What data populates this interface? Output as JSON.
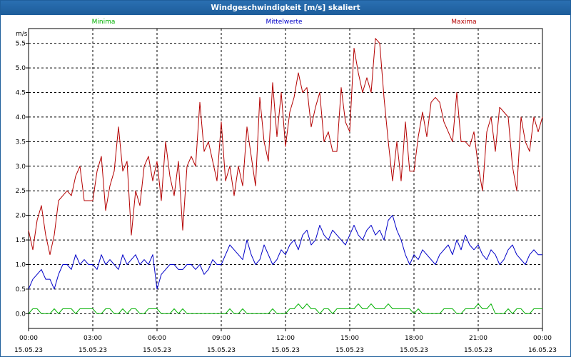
{
  "window": {
    "title": "Windgeschwindigkeit [m/s] skaliert"
  },
  "chart_data": {
    "type": "line",
    "title": "Windgeschwindigkeit [m/s] skaliert",
    "ylabel": "m/s",
    "xlabel": "",
    "ylim": [
      -0.3,
      5.8
    ],
    "xlim": [
      0,
      24
    ],
    "yticks": [
      "0.0",
      "0.5",
      "1.0",
      "1.5",
      "2.0",
      "2.5",
      "3.0",
      "3.5",
      "4.0",
      "4.5",
      "5.0",
      "5.5"
    ],
    "ytick_values": [
      0,
      0.5,
      1,
      1.5,
      2,
      2.5,
      3,
      3.5,
      4,
      4.5,
      5,
      5.5
    ],
    "xticks": [
      {
        "time": "00:00",
        "date": "15.05.23",
        "hour": 0
      },
      {
        "time": "03:00",
        "date": "15.05.23",
        "hour": 3
      },
      {
        "time": "06:00",
        "date": "15.05.23",
        "hour": 6
      },
      {
        "time": "09:00",
        "date": "15.05.23",
        "hour": 9
      },
      {
        "time": "12:00",
        "date": "15.05.23",
        "hour": 12
      },
      {
        "time": "15:00",
        "date": "15.05.23",
        "hour": 15
      },
      {
        "time": "18:00",
        "date": "15.05.23",
        "hour": 18
      },
      {
        "time": "21:00",
        "date": "15.05.23",
        "hour": 21
      },
      {
        "time": "00:00",
        "date": "16.05.23",
        "hour": 24
      }
    ],
    "grid": true,
    "legend_placement": "top",
    "series": [
      {
        "name": "Minima",
        "color": "#00b000",
        "x": [
          0,
          0.2,
          0.4,
          0.6,
          0.8,
          1.0,
          1.2,
          1.4,
          1.6,
          1.8,
          2.0,
          2.2,
          2.4,
          2.6,
          2.8,
          3.0,
          3.2,
          3.4,
          3.6,
          3.8,
          4.0,
          4.2,
          4.4,
          4.6,
          4.8,
          5.0,
          5.2,
          5.4,
          5.6,
          5.8,
          6.0,
          6.2,
          6.4,
          6.6,
          6.8,
          7.0,
          7.2,
          7.4,
          7.6,
          7.8,
          8.0,
          8.2,
          8.4,
          8.6,
          8.8,
          9.0,
          9.2,
          9.4,
          9.6,
          9.8,
          10.0,
          10.2,
          10.4,
          10.6,
          10.8,
          11.0,
          11.2,
          11.4,
          11.6,
          11.8,
          12.0,
          12.2,
          12.4,
          12.6,
          12.8,
          13.0,
          13.2,
          13.4,
          13.6,
          13.8,
          14.0,
          14.2,
          14.4,
          14.6,
          14.8,
          15.0,
          15.2,
          15.4,
          15.6,
          15.8,
          16.0,
          16.2,
          16.4,
          16.6,
          16.8,
          17.0,
          17.2,
          17.4,
          17.6,
          17.8,
          18.0,
          18.2,
          18.4,
          18.6,
          18.8,
          19.0,
          19.2,
          19.4,
          19.6,
          19.8,
          20.0,
          20.2,
          20.4,
          20.6,
          20.8,
          21.0,
          21.2,
          21.4,
          21.6,
          21.8,
          22.0,
          22.2,
          22.4,
          22.6,
          22.8,
          23.0,
          23.2,
          23.4,
          23.6,
          23.8,
          24.0
        ],
        "values": [
          0.0,
          0.1,
          0.1,
          0.0,
          0.0,
          0.0,
          0.1,
          0.0,
          0.1,
          0.1,
          0.1,
          0.0,
          0.1,
          0.1,
          0.1,
          0.1,
          0.0,
          0.0,
          0.1,
          0.1,
          0.0,
          0.0,
          0.1,
          0.0,
          0.1,
          0.1,
          0.0,
          0.0,
          0.1,
          0.1,
          0.1,
          0.0,
          0.0,
          0.0,
          0.1,
          0.0,
          0.1,
          0.0,
          0.0,
          0.0,
          0.0,
          0.0,
          0.0,
          0.0,
          0.0,
          0.0,
          0.0,
          0.1,
          0.0,
          0.0,
          0.1,
          0.0,
          0.0,
          0.0,
          0.0,
          0.0,
          0.0,
          0.1,
          0.0,
          0.0,
          0.0,
          0.1,
          0.1,
          0.2,
          0.1,
          0.2,
          0.1,
          0.1,
          0.0,
          0.1,
          0.1,
          0.0,
          0.1,
          0.1,
          0.1,
          0.1,
          0.1,
          0.2,
          0.1,
          0.1,
          0.2,
          0.1,
          0.1,
          0.1,
          0.2,
          0.1,
          0.1,
          0.1,
          0.1,
          0.1,
          0.0,
          0.1,
          0.0,
          0.0,
          0.0,
          0.0,
          0.0,
          0.1,
          0.1,
          0.1,
          0.0,
          0.0,
          0.1,
          0.1,
          0.1,
          0.2,
          0.1,
          0.1,
          0.2,
          0.0,
          0.0,
          0.0,
          0.1,
          0.0,
          0.1,
          0.1,
          0.0,
          0.0,
          0.1,
          0.1,
          0.1
        ]
      },
      {
        "name": "Mittelwerte",
        "color": "#0000c8",
        "x": [
          0,
          0.2,
          0.4,
          0.6,
          0.8,
          1.0,
          1.2,
          1.4,
          1.6,
          1.8,
          2.0,
          2.2,
          2.4,
          2.6,
          2.8,
          3.0,
          3.2,
          3.4,
          3.6,
          3.8,
          4.0,
          4.2,
          4.4,
          4.6,
          4.8,
          5.0,
          5.2,
          5.4,
          5.6,
          5.8,
          6.0,
          6.2,
          6.4,
          6.6,
          6.8,
          7.0,
          7.2,
          7.4,
          7.6,
          7.8,
          8.0,
          8.2,
          8.4,
          8.6,
          8.8,
          9.0,
          9.2,
          9.4,
          9.6,
          9.8,
          10.0,
          10.2,
          10.4,
          10.6,
          10.8,
          11.0,
          11.2,
          11.4,
          11.6,
          11.8,
          12.0,
          12.2,
          12.4,
          12.6,
          12.8,
          13.0,
          13.2,
          13.4,
          13.6,
          13.8,
          14.0,
          14.2,
          14.4,
          14.6,
          14.8,
          15.0,
          15.2,
          15.4,
          15.6,
          15.8,
          16.0,
          16.2,
          16.4,
          16.6,
          16.8,
          17.0,
          17.2,
          17.4,
          17.6,
          17.8,
          18.0,
          18.2,
          18.4,
          18.6,
          18.8,
          19.0,
          19.2,
          19.4,
          19.6,
          19.8,
          20.0,
          20.2,
          20.4,
          20.6,
          20.8,
          21.0,
          21.2,
          21.4,
          21.6,
          21.8,
          22.0,
          22.2,
          22.4,
          22.6,
          22.8,
          23.0,
          23.2,
          23.4,
          23.6,
          23.8,
          24.0
        ],
        "values": [
          0.5,
          0.7,
          0.8,
          0.9,
          0.7,
          0.7,
          0.5,
          0.8,
          1.0,
          1.0,
          0.9,
          1.2,
          1.0,
          1.1,
          1.0,
          1.0,
          0.9,
          1.2,
          1.0,
          1.1,
          1.0,
          0.9,
          1.2,
          1.0,
          1.1,
          1.2,
          1.0,
          1.1,
          1.0,
          1.2,
          0.5,
          0.8,
          0.9,
          1.0,
          1.0,
          0.9,
          0.9,
          1.0,
          1.0,
          0.9,
          1.0,
          0.8,
          0.9,
          1.1,
          1.0,
          1.0,
          1.2,
          1.4,
          1.3,
          1.2,
          1.1,
          1.5,
          1.2,
          1.0,
          1.1,
          1.4,
          1.2,
          1.0,
          1.1,
          1.3,
          1.2,
          1.4,
          1.5,
          1.3,
          1.6,
          1.7,
          1.4,
          1.5,
          1.8,
          1.6,
          1.5,
          1.7,
          1.6,
          1.5,
          1.4,
          1.6,
          1.8,
          1.6,
          1.5,
          1.7,
          1.8,
          1.6,
          1.7,
          1.5,
          1.9,
          2.0,
          1.7,
          1.5,
          1.2,
          1.0,
          1.2,
          1.1,
          1.3,
          1.2,
          1.1,
          1.0,
          1.2,
          1.3,
          1.4,
          1.2,
          1.5,
          1.3,
          1.6,
          1.4,
          1.3,
          1.4,
          1.2,
          1.1,
          1.3,
          1.2,
          1.0,
          1.1,
          1.3,
          1.4,
          1.2,
          1.1,
          1.0,
          1.2,
          1.3,
          1.2,
          1.2
        ]
      },
      {
        "name": "Maxima",
        "color": "#b40000",
        "x": [
          0,
          0.2,
          0.4,
          0.6,
          0.8,
          1.0,
          1.2,
          1.4,
          1.6,
          1.8,
          2.0,
          2.2,
          2.4,
          2.6,
          2.8,
          3.0,
          3.2,
          3.4,
          3.6,
          3.8,
          4.0,
          4.2,
          4.4,
          4.6,
          4.8,
          5.0,
          5.2,
          5.4,
          5.6,
          5.8,
          6.0,
          6.2,
          6.4,
          6.6,
          6.8,
          7.0,
          7.2,
          7.4,
          7.6,
          7.8,
          8.0,
          8.2,
          8.4,
          8.6,
          8.8,
          9.0,
          9.2,
          9.4,
          9.6,
          9.8,
          10.0,
          10.2,
          10.4,
          10.6,
          10.8,
          11.0,
          11.2,
          11.4,
          11.6,
          11.8,
          12.0,
          12.2,
          12.4,
          12.6,
          12.8,
          13.0,
          13.2,
          13.4,
          13.6,
          13.8,
          14.0,
          14.2,
          14.4,
          14.6,
          14.8,
          15.0,
          15.2,
          15.4,
          15.6,
          15.8,
          16.0,
          16.2,
          16.4,
          16.6,
          16.8,
          17.0,
          17.2,
          17.4,
          17.6,
          17.8,
          18.0,
          18.2,
          18.4,
          18.6,
          18.8,
          19.0,
          19.2,
          19.4,
          19.6,
          19.8,
          20.0,
          20.2,
          20.4,
          20.6,
          20.8,
          21.0,
          21.2,
          21.4,
          21.6,
          21.8,
          22.0,
          22.2,
          22.4,
          22.6,
          22.8,
          23.0,
          23.2,
          23.4,
          23.6,
          23.8,
          24.0
        ],
        "values": [
          1.7,
          1.3,
          1.9,
          2.2,
          1.6,
          1.2,
          1.6,
          2.3,
          2.4,
          2.5,
          2.4,
          2.8,
          3.0,
          2.3,
          2.3,
          2.3,
          2.9,
          3.2,
          2.1,
          2.6,
          2.9,
          3.8,
          2.9,
          3.1,
          1.6,
          2.5,
          2.2,
          3.0,
          3.2,
          2.7,
          3.1,
          2.3,
          3.5,
          2.8,
          2.4,
          3.1,
          1.7,
          3.0,
          3.2,
          3.0,
          4.3,
          3.3,
          3.5,
          3.1,
          2.7,
          3.9,
          2.7,
          3.0,
          2.4,
          3.0,
          2.6,
          3.8,
          3.2,
          2.6,
          4.4,
          3.5,
          3.1,
          4.7,
          3.6,
          4.5,
          3.4,
          4.1,
          4.4,
          4.9,
          4.5,
          4.6,
          3.8,
          4.2,
          4.5,
          3.5,
          3.7,
          3.3,
          3.3,
          4.6,
          3.9,
          3.7,
          5.4,
          4.9,
          4.5,
          4.8,
          4.5,
          5.6,
          5.5,
          4.4,
          3.5,
          2.7,
          3.5,
          2.7,
          3.9,
          2.9,
          2.9,
          3.6,
          4.1,
          3.6,
          4.3,
          4.4,
          4.3,
          3.9,
          3.7,
          3.5,
          4.5,
          3.5,
          3.5,
          3.4,
          3.7,
          3.0,
          2.5,
          3.7,
          4.0,
          3.3,
          4.2,
          4.1,
          4.0,
          3.0,
          2.5,
          4.0,
          3.5,
          3.3,
          4.0,
          3.7,
          4.0
        ]
      }
    ]
  }
}
